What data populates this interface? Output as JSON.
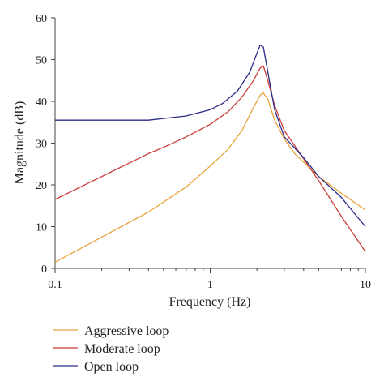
{
  "chart_data": {
    "type": "line",
    "xlabel": "Frequency (Hz)",
    "ylabel": "Magnitude (dB)",
    "xscale": "log",
    "xlim": [
      0.1,
      10
    ],
    "ylim": [
      0,
      60
    ],
    "xticks": [
      0.1,
      1,
      10
    ],
    "xtick_labels": [
      "0.1",
      "1",
      "10"
    ],
    "yticks": [
      0,
      10,
      20,
      30,
      40,
      50,
      60
    ],
    "ytick_labels": [
      "0",
      "10",
      "20",
      "30",
      "40",
      "50",
      "60"
    ],
    "grid": false,
    "legend_position": "bottom",
    "series": [
      {
        "name": "Aggressive loop",
        "color": "#e8a33c",
        "x": [
          0.1,
          0.2,
          0.4,
          0.7,
          1.0,
          1.3,
          1.6,
          1.9,
          2.1,
          2.2,
          2.35,
          2.6,
          3.0,
          3.5,
          5.0,
          7.0,
          10.0
        ],
        "y": [
          1.5,
          7.5,
          13.5,
          19.5,
          24.5,
          28.5,
          33.0,
          38.5,
          41.5,
          42.0,
          40.5,
          35.5,
          31.0,
          27.5,
          22.0,
          18.0,
          14.0
        ]
      },
      {
        "name": "Moderate loop",
        "color": "#cc3b3b",
        "x": [
          0.1,
          0.2,
          0.4,
          0.5,
          0.7,
          1.0,
          1.3,
          1.6,
          1.9,
          2.1,
          2.2,
          2.35,
          2.6,
          3.0,
          5.0,
          7.0,
          10.0
        ],
        "y": [
          16.5,
          22.0,
          27.5,
          29.0,
          31.5,
          34.5,
          37.5,
          41.0,
          45.0,
          48.0,
          48.5,
          45.0,
          39.0,
          33.0,
          21.0,
          12.5,
          4.0
        ]
      },
      {
        "name": "Open loop",
        "color": "#2a2a8a",
        "x": [
          0.1,
          0.4,
          0.7,
          1.0,
          1.2,
          1.5,
          1.8,
          2.0,
          2.1,
          2.2,
          2.35,
          2.6,
          3.0,
          4.0,
          5.0,
          7.0,
          10.0
        ],
        "y": [
          35.5,
          35.5,
          36.5,
          38.0,
          39.5,
          42.5,
          47.0,
          51.5,
          53.5,
          53.0,
          47.0,
          38.0,
          31.5,
          26.5,
          22.0,
          17.0,
          10.0
        ]
      }
    ]
  }
}
